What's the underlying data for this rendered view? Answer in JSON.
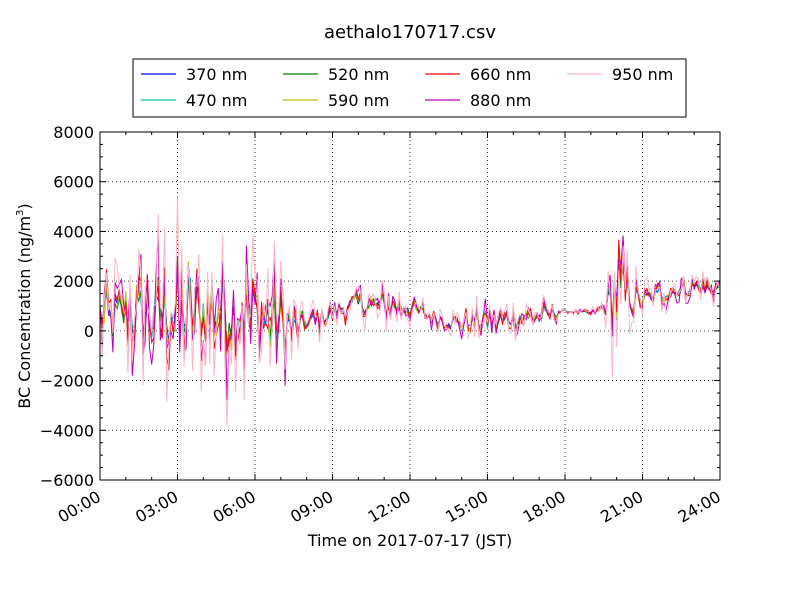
{
  "chart_data": {
    "type": "line",
    "title": "aethalo170717.csv",
    "xlabel": "Time on 2017-07-17 (JST)",
    "ylabel": "BC Concentration (ng/m³)",
    "ylabel_main": "BC Concentration (ng/m",
    "ylabel_sup": "3",
    "ylabel_tail": ")",
    "x_unit": "hours since 00:00",
    "xlim": [
      0,
      24
    ],
    "ylim": [
      -6000,
      8000
    ],
    "x_ticks": [
      0,
      3,
      6,
      9,
      12,
      15,
      18,
      21,
      24
    ],
    "x_tick_labels": [
      "00:00",
      "03:00",
      "06:00",
      "09:00",
      "12:00",
      "15:00",
      "18:00",
      "21:00",
      "24:00"
    ],
    "y_ticks": [
      -6000,
      -4000,
      -2000,
      0,
      2000,
      4000,
      6000,
      8000
    ],
    "y_tick_labels": [
      "−6000",
      "−4000",
      "−2000",
      "0",
      "2000",
      "4000",
      "6000",
      "8000"
    ],
    "grid": true,
    "legend_position": "top, above plot",
    "legend_columns": 4,
    "series": [
      {
        "name": "370 nm",
        "color": "#0000ff",
        "scale": 0.55,
        "noise": 0.18,
        "phase": 0.0
      },
      {
        "name": "470 nm",
        "color": "#00bfbf",
        "scale": 0.6,
        "noise": 0.2,
        "phase": 0.3
      },
      {
        "name": "520 nm",
        "color": "#008000",
        "scale": 0.65,
        "noise": 0.22,
        "phase": 0.6
      },
      {
        "name": "590 nm",
        "color": "#bfbf00",
        "scale": 0.7,
        "noise": 0.25,
        "phase": 0.9
      },
      {
        "name": "660 nm",
        "color": "#ff0000",
        "scale": 0.8,
        "noise": 0.3,
        "phase": 1.2
      },
      {
        "name": "880 nm",
        "color": "#bf00bf",
        "scale": 1.0,
        "noise": 0.4,
        "phase": 1.5
      },
      {
        "name": "950 nm",
        "color": "#ffb6c1",
        "scale": 1.15,
        "noise": 0.45,
        "phase": 1.8
      }
    ],
    "baseline_profile": {
      "x": [
        0,
        1.5,
        3,
        4.5,
        6,
        6.5,
        7,
        7.5,
        8,
        9,
        10,
        11,
        12,
        13,
        14,
        15,
        16,
        17,
        18,
        19,
        19.5,
        20,
        20.5,
        21,
        22,
        23,
        24
      ],
      "y": [
        500,
        700,
        600,
        800,
        700,
        600,
        200,
        100,
        300,
        700,
        1100,
        1000,
        900,
        500,
        300,
        400,
        500,
        600,
        800,
        700,
        900,
        1500,
        1300,
        1200,
        1600,
        1800,
        1700
      ]
    },
    "amplitude_profile": {
      "x": [
        0,
        1,
        2,
        3,
        4,
        5,
        6,
        6.5,
        7,
        7.5,
        8,
        9,
        10,
        11,
        12,
        13,
        14,
        15,
        16,
        17,
        18,
        19,
        19.5,
        20,
        20.3,
        20.6,
        21,
        22,
        23,
        24
      ],
      "y": [
        1800,
        2500,
        3000,
        3400,
        3000,
        3200,
        2800,
        3600,
        2500,
        1500,
        800,
        600,
        900,
        900,
        700,
        500,
        700,
        900,
        700,
        900,
        100,
        200,
        400,
        3500,
        2500,
        1200,
        800,
        700,
        700,
        700
      ]
    },
    "points_per_hour": 12
  }
}
